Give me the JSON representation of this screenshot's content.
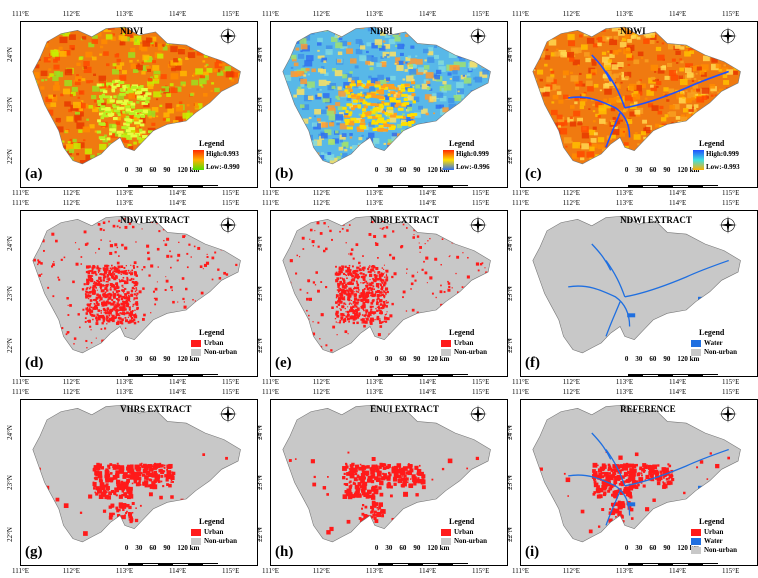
{
  "ticks": {
    "lon": [
      "111°E",
      "112°E",
      "113°E",
      "114°E",
      "115°E"
    ],
    "lat": [
      "24°N",
      "23°N",
      "22°N"
    ]
  },
  "scale": {
    "labels": [
      "0",
      "30",
      "60",
      "90",
      "120"
    ],
    "unit": "km"
  },
  "north_icon": "compass-rose",
  "colors": {
    "urban": "#ff1a1a",
    "water": "#1f6fe0",
    "nonurban": "#c8c8c8"
  },
  "panels": [
    {
      "id": "a",
      "letter": "(a)",
      "title": "NDVI",
      "style": "ndvi",
      "legend": {
        "title": "Legend",
        "high": "High:0.993",
        "low": "Low:-0.990",
        "ramp": [
          "#ff2a00",
          "#ffb000",
          "#4fe000"
        ]
      }
    },
    {
      "id": "b",
      "letter": "(b)",
      "title": "NDBI",
      "style": "ndbi",
      "legend": {
        "title": "Legend",
        "high": "High:0.999",
        "low": "Low:-0.996",
        "ramp": [
          "#ff2a00",
          "#ffe000",
          "#2f6ff0"
        ]
      }
    },
    {
      "id": "c",
      "letter": "(c)",
      "title": "NDWI",
      "style": "ndwi",
      "legend": {
        "title": "Legend",
        "high": "High:0.999",
        "low": "Low:-0.993",
        "ramp": [
          "#2050ff",
          "#40e0e0",
          "#ffb000"
        ]
      }
    },
    {
      "id": "d",
      "letter": "(d)",
      "title": "NDVI EXTRACT",
      "style": "urban",
      "legend": {
        "title": "Legend",
        "items": [
          {
            "label": "Urban",
            "color": "#ff1a1a"
          },
          {
            "label": "Non-urban",
            "color": "#c8c8c8"
          }
        ]
      }
    },
    {
      "id": "e",
      "letter": "(e)",
      "title": "NDBI EXTRACT",
      "style": "urban",
      "legend": {
        "title": "Legend",
        "items": [
          {
            "label": "Urban",
            "color": "#ff1a1a"
          },
          {
            "label": "Non-urban",
            "color": "#c8c8c8"
          }
        ]
      }
    },
    {
      "id": "f",
      "letter": "(f)",
      "title": "NDWI EXTRACT",
      "style": "water",
      "legend": {
        "title": "Legend",
        "items": [
          {
            "label": "Water",
            "color": "#1f6fe0"
          },
          {
            "label": "Non-urban",
            "color": "#c8c8c8"
          }
        ]
      }
    },
    {
      "id": "g",
      "letter": "(g)",
      "title": "VIIRS EXTRACT",
      "style": "urban2",
      "legend": {
        "title": "Legend",
        "items": [
          {
            "label": "Urban",
            "color": "#ff1a1a"
          },
          {
            "label": "Non-urban",
            "color": "#c8c8c8"
          }
        ]
      }
    },
    {
      "id": "h",
      "letter": "(h)",
      "title": "ENUI EXTRACT",
      "style": "urban2",
      "legend": {
        "title": "Legend",
        "items": [
          {
            "label": "Urban",
            "color": "#ff1a1a"
          },
          {
            "label": "Non-urban",
            "color": "#c8c8c8"
          }
        ]
      }
    },
    {
      "id": "i",
      "letter": "(i)",
      "title": "REFERENCE",
      "style": "reference",
      "legend": {
        "title": "Legend",
        "items": [
          {
            "label": "Urban",
            "color": "#ff1a1a"
          },
          {
            "label": "Water",
            "color": "#1f6fe0"
          },
          {
            "label": "Non-urban",
            "color": "#c8c8c8"
          }
        ]
      }
    }
  ]
}
